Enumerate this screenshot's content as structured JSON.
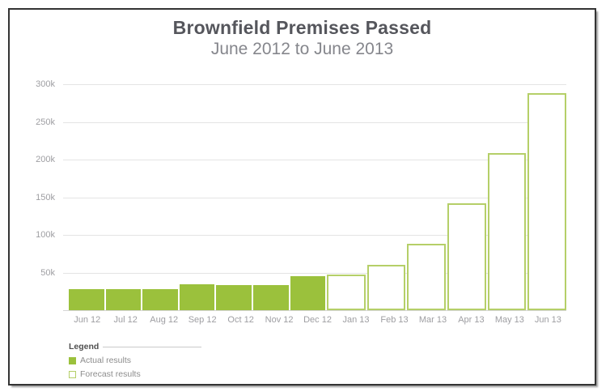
{
  "title": "Brownfield Premises Passed",
  "subtitle": "June 2012 to June 2013",
  "legend": {
    "heading": "Legend",
    "items": [
      {
        "label": "Actual results",
        "type": "actual"
      },
      {
        "label": "Forecast results",
        "type": "forecast"
      }
    ]
  },
  "colors": {
    "actual_fill": "#9bc13c",
    "forecast_border": "#b5cf68",
    "gridline": "#e4e4e4",
    "axis_text": "#9e9ea2",
    "title_text": "#55565c",
    "subtitle_text": "#85868c"
  },
  "chart_data": {
    "type": "bar",
    "title": "Brownfield Premises Passed",
    "subtitle": "June 2012 to June 2013",
    "categories": [
      "Jun 12",
      "Jul 12",
      "Aug 12",
      "Sep 12",
      "Oct 12",
      "Nov 12",
      "Dec 12",
      "Jan 13",
      "Feb 13",
      "Mar 13",
      "Apr 13",
      "May 13",
      "Jun 13"
    ],
    "series": [
      {
        "name": "Actual results",
        "style": "solid",
        "values": [
          28000,
          28000,
          28000,
          34000,
          33000,
          33000,
          45000,
          null,
          null,
          null,
          null,
          null,
          null
        ]
      },
      {
        "name": "Forecast results",
        "style": "outline",
        "values": [
          null,
          null,
          null,
          null,
          null,
          null,
          null,
          47000,
          60000,
          88000,
          142000,
          209000,
          288000
        ]
      }
    ],
    "ylim": [
      0,
      300000
    ],
    "yticks": [
      50000,
      100000,
      150000,
      200000,
      250000,
      300000
    ],
    "ytick_labels": [
      "50k",
      "100k",
      "150k",
      "200k",
      "250k",
      "300k"
    ],
    "xlabel": "",
    "ylabel": "",
    "grid": true,
    "legend_position": "bottom-left"
  }
}
